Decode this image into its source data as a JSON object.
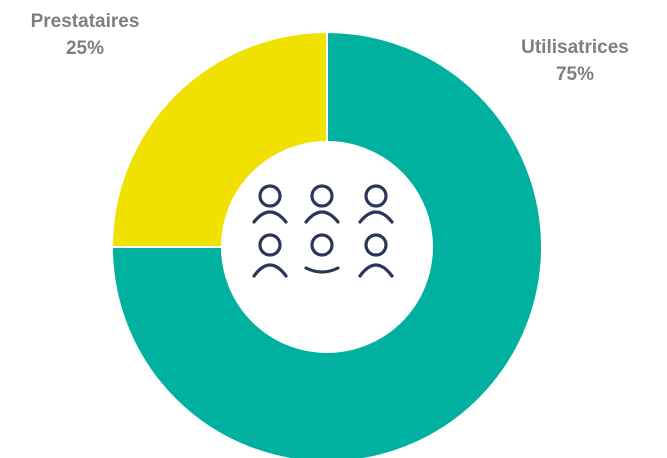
{
  "chart_data": {
    "type": "donut",
    "categories": [
      "Utilisatrices",
      "Prestataires"
    ],
    "values": [
      75,
      25
    ],
    "value_labels": [
      "75%",
      "25%"
    ],
    "colors": [
      "#00b1a0",
      "#f0e100"
    ]
  }
}
